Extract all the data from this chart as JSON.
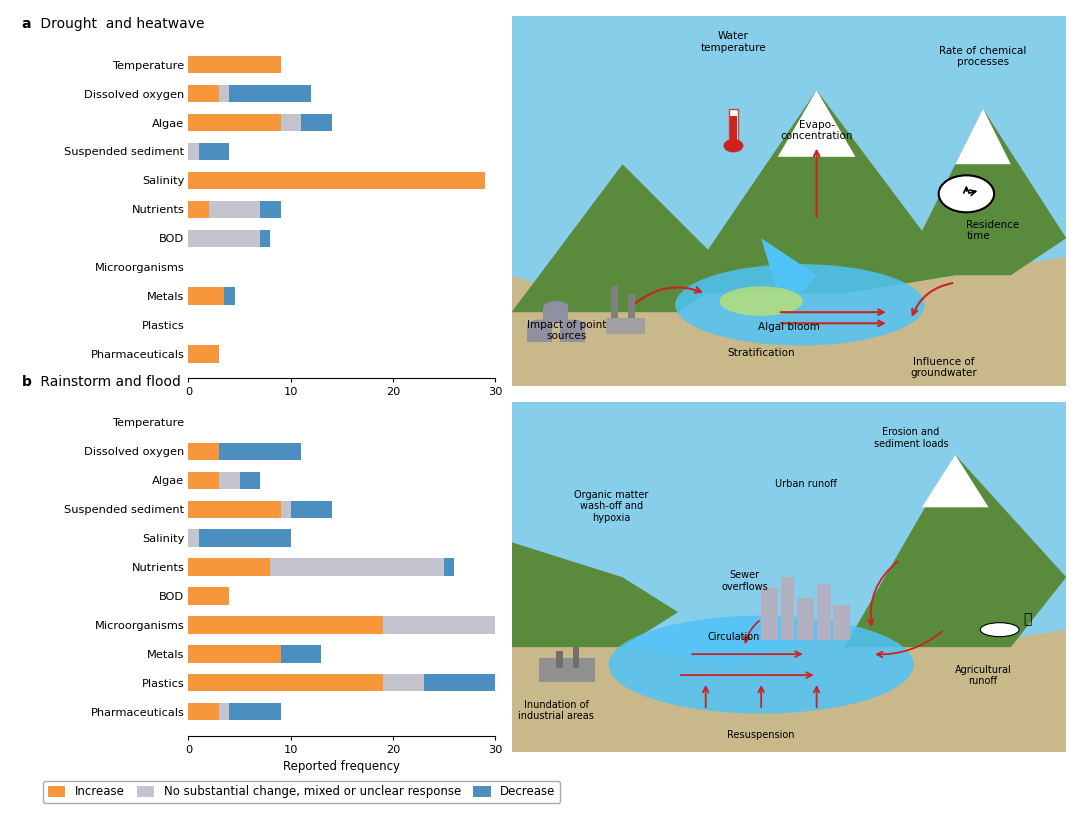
{
  "categories": [
    "Temperature",
    "Dissolved oxygen",
    "Algae",
    "Suspended sediment",
    "Salinity",
    "Nutrients",
    "BOD",
    "Microorganisms",
    "Metals",
    "Plastics",
    "Pharmaceuticals"
  ],
  "panel_a": {
    "title_bold": "a",
    "title_rest": " Drought  and heatwave",
    "increase": [
      9,
      3,
      9,
      0,
      29,
      2,
      0,
      0,
      3.5,
      0,
      3
    ],
    "mixed": [
      0,
      1,
      2,
      1,
      0,
      5,
      7,
      0,
      0,
      0,
      0
    ],
    "decrease": [
      0,
      8,
      3,
      3,
      0,
      2,
      1,
      0,
      1,
      0,
      0
    ]
  },
  "panel_b": {
    "title_bold": "b",
    "title_rest": " Rainstorm and flood",
    "increase": [
      0,
      3,
      3,
      9,
      0,
      8,
      4,
      19,
      9,
      19,
      3
    ],
    "mixed": [
      0,
      0,
      2,
      1,
      1,
      17,
      0,
      11,
      0,
      4,
      1
    ],
    "decrease": [
      0,
      8,
      2,
      4,
      9,
      1,
      0,
      0,
      4,
      7,
      5
    ]
  },
  "colors": {
    "increase": "#F5973A",
    "mixed": "#C4C4CE",
    "decrease": "#4A8FC0"
  },
  "xlabel": "Reported frequency",
  "xlim": [
    0,
    30
  ],
  "xticks": [
    0,
    10,
    20,
    30
  ],
  "legend_labels": [
    "Increase",
    "No substantial change, mixed or unclear response",
    "Decrease"
  ],
  "background_color": "#FFFFFF",
  "diagram_a_bg": "#ADD8E8",
  "diagram_b_bg": "#ADD8E8"
}
